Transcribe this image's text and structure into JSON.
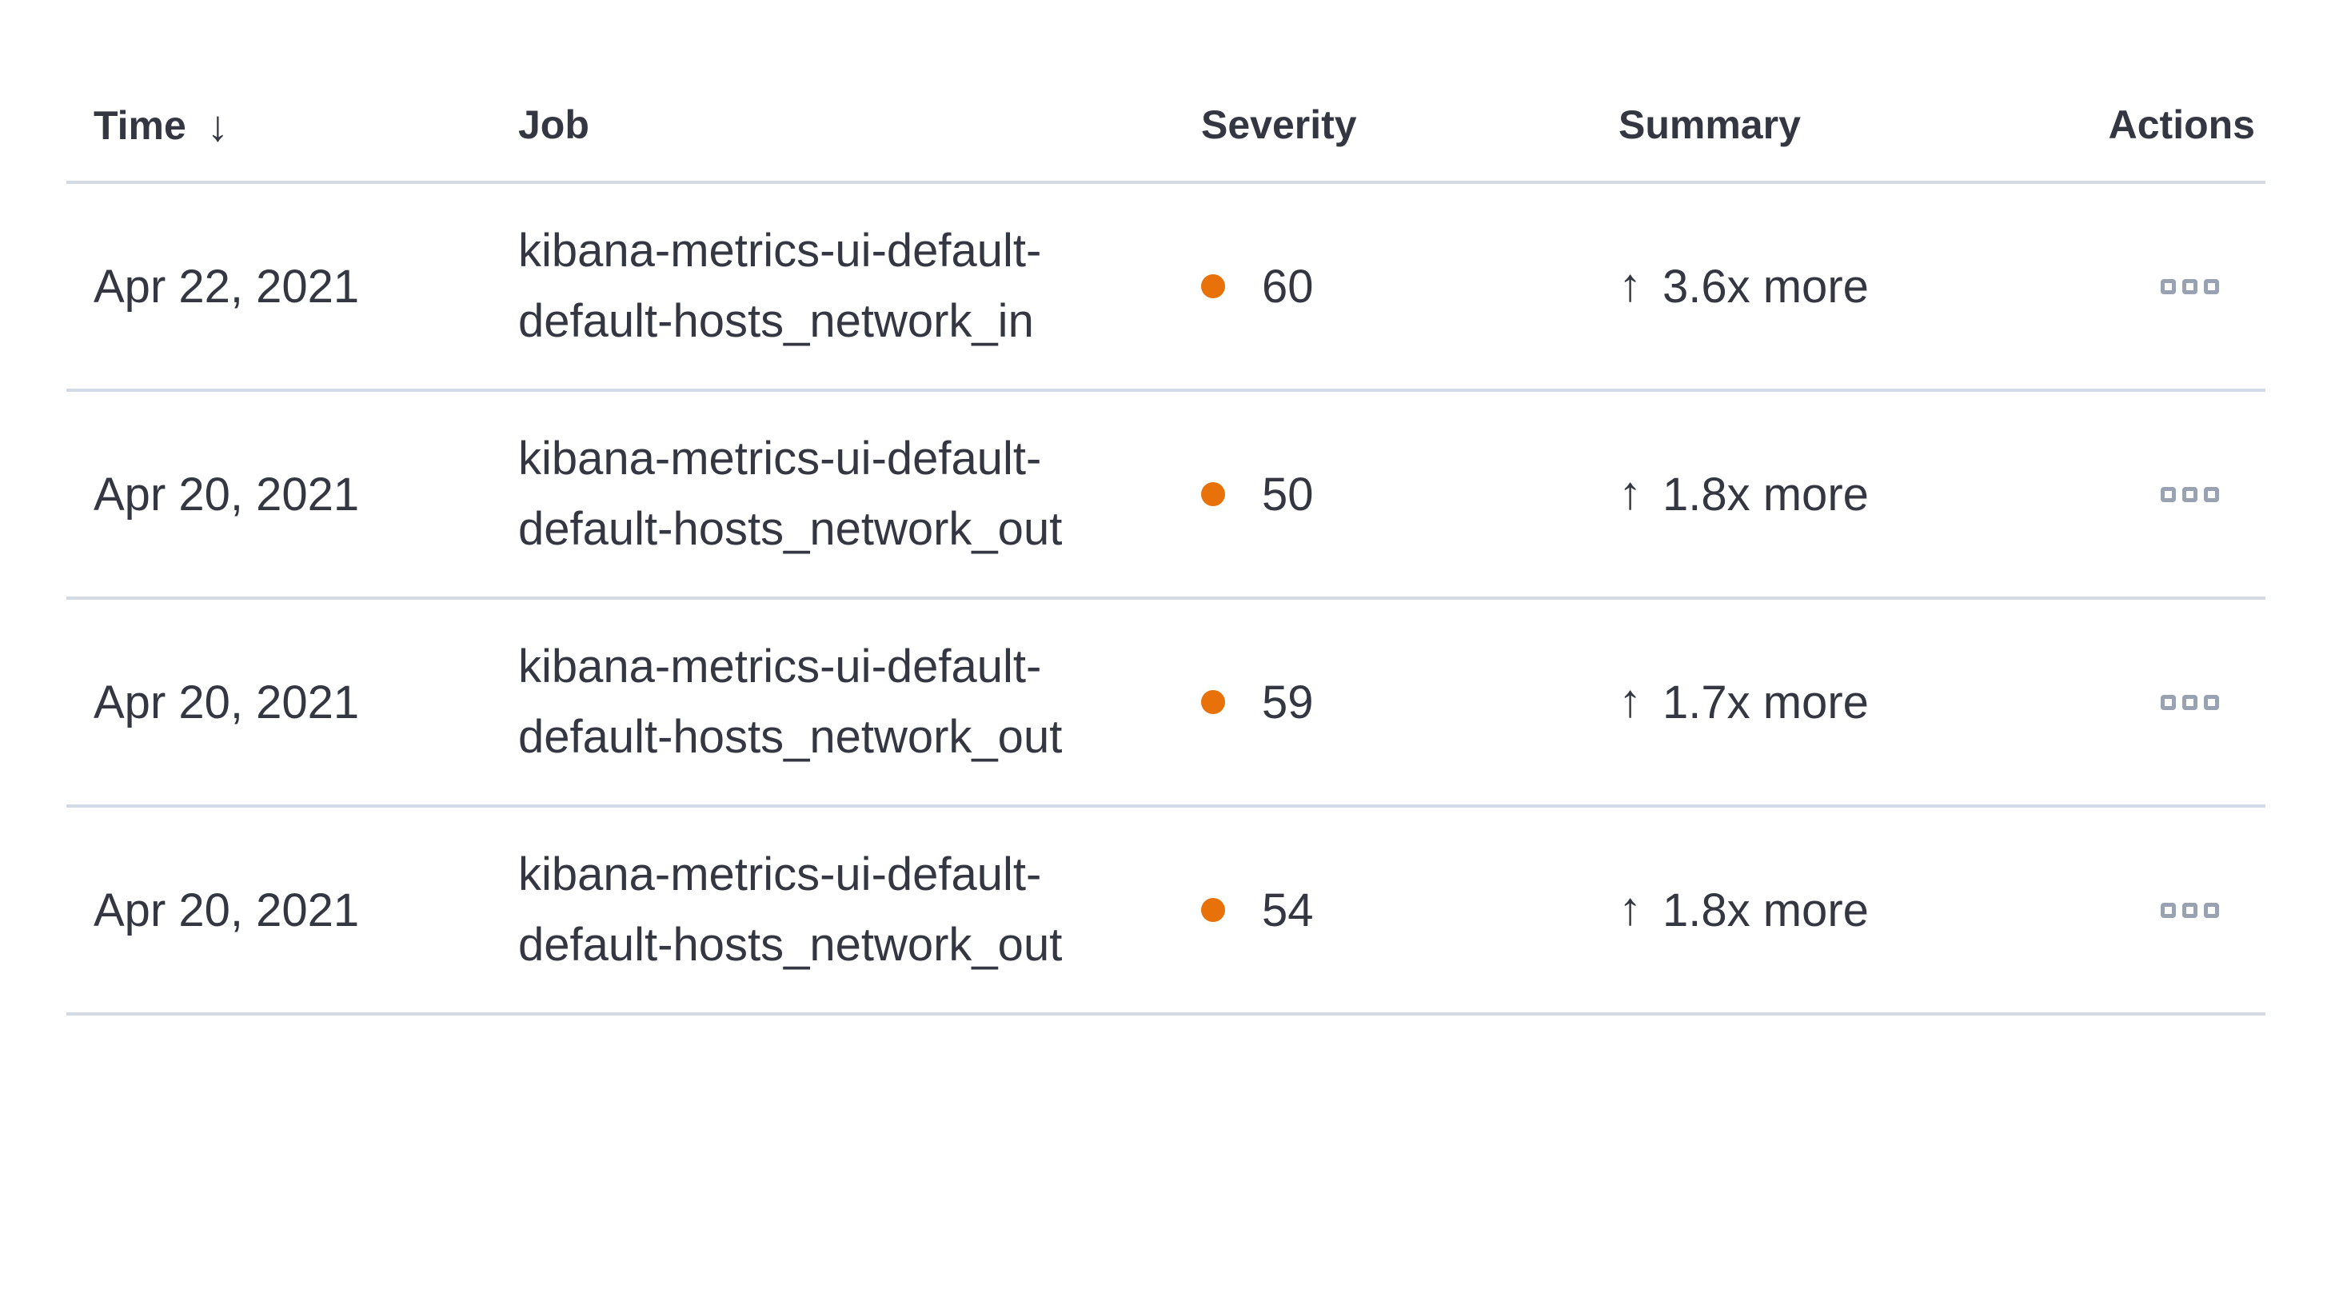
{
  "anomalies_table": {
    "columns": [
      {
        "key": "time",
        "label": "Time",
        "sorted": "desc"
      },
      {
        "key": "job",
        "label": "Job"
      },
      {
        "key": "severity",
        "label": "Severity"
      },
      {
        "key": "summary",
        "label": "Summary"
      },
      {
        "key": "actions",
        "label": "Actions"
      }
    ],
    "rows": [
      {
        "time": "Apr 22, 2021",
        "job": "kibana-metrics-ui-default-default-hosts_network_in",
        "job_lines": [
          "kibana-metrics-ui-default-",
          "default-hosts_network_in"
        ],
        "severity": 60,
        "summary": "3.6x more",
        "summary_direction": "up"
      },
      {
        "time": "Apr 20, 2021",
        "job": "kibana-metrics-ui-default-default-hosts_network_out",
        "job_lines": [
          "kibana-metrics-ui-default-",
          "default-hosts_network_out"
        ],
        "severity": 50,
        "summary": "1.8x more",
        "summary_direction": "up"
      },
      {
        "time": "Apr 20, 2021",
        "job": "kibana-metrics-ui-default-default-hosts_network_out",
        "job_lines": [
          "kibana-metrics-ui-default-",
          "default-hosts_network_out"
        ],
        "severity": 59,
        "summary": "1.7x more",
        "summary_direction": "up"
      },
      {
        "time": "Apr 20, 2021",
        "job": "kibana-metrics-ui-default-default-hosts_network_out",
        "job_lines": [
          "kibana-metrics-ui-default-",
          "default-hosts_network_out"
        ],
        "severity": 54,
        "summary": "1.8x more",
        "summary_direction": "up"
      }
    ]
  },
  "icons": {
    "sort_desc": "↓",
    "increase_arrow": "↑"
  },
  "colors": {
    "severity_major_dot": "#e8710a",
    "text": "#343741",
    "divider": "#d3dae6",
    "actions_icon": "#98a2b3"
  }
}
